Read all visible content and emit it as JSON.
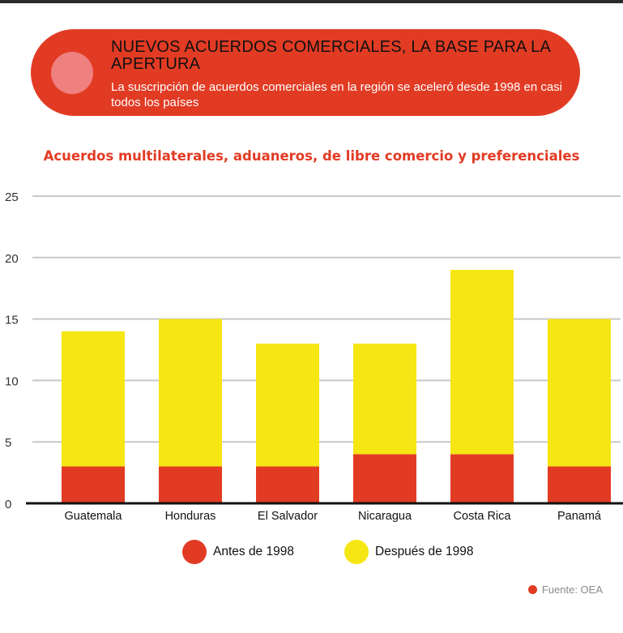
{
  "header": {
    "title": "NUEVOS ACUERDOS COMERCIALES, LA BASE PARA LA APERTURA",
    "subtitle": "La suscripción de acuerdos comerciales en la región se aceleró desde 1998 en casi todos los países"
  },
  "colors": {
    "accent": "#e23b24",
    "before": "#e23b24",
    "after": "#f6e614",
    "grid": "#c8c8c8"
  },
  "chart_data": {
    "type": "bar",
    "stacked": true,
    "title": "Acuerdos multilaterales, aduaneros, de libre comercio y preferenciales",
    "xlabel": "",
    "ylabel": "",
    "ylim": [
      0,
      25
    ],
    "yticks": [
      0,
      5,
      10,
      15,
      20,
      25
    ],
    "grid": true,
    "legend_position": "bottom",
    "categories": [
      "Guatemala",
      "Honduras",
      "El Salvador",
      "Nicaragua",
      "Costa Rica",
      "Panamá"
    ],
    "series": [
      {
        "name": "Antes de 1998",
        "color": "#e23b24",
        "values": [
          3,
          3,
          3,
          4,
          4,
          3
        ]
      },
      {
        "name": "Después de 1998",
        "color": "#f6e614",
        "values": [
          11,
          12,
          10,
          9,
          15,
          12
        ]
      }
    ]
  },
  "legend": {
    "before_label": "Antes de 1998",
    "after_label": "Después de 1998"
  },
  "source": {
    "label": "Fuente: OEA"
  }
}
